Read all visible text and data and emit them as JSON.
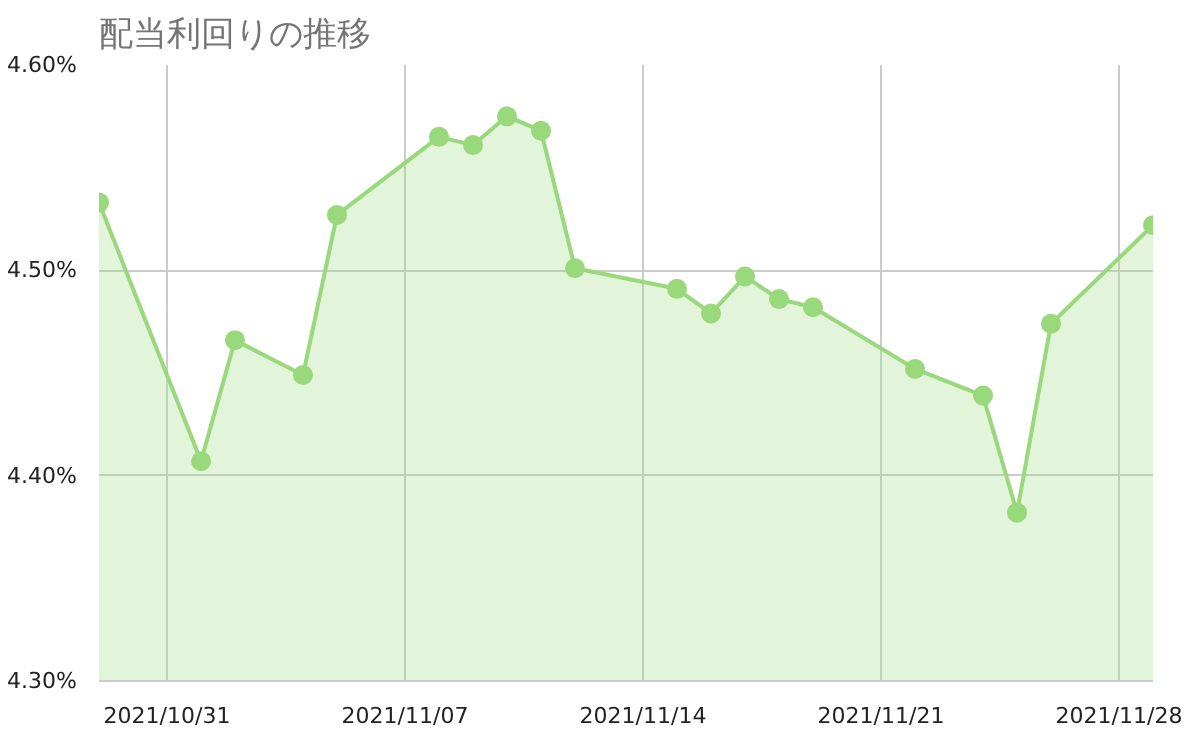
{
  "chart_data": {
    "type": "area",
    "title": "配当利回りの推移",
    "x": [
      "2021-10-29",
      "2021-11-01",
      "2021-11-02",
      "2021-11-04",
      "2021-11-05",
      "2021-11-08",
      "2021-11-09",
      "2021-11-10",
      "2021-11-11",
      "2021-11-12",
      "2021-11-15",
      "2021-11-16",
      "2021-11-17",
      "2021-11-18",
      "2021-11-19",
      "2021-11-22",
      "2021-11-24",
      "2021-11-25",
      "2021-11-26",
      "2021-11-29"
    ],
    "series": [
      {
        "color": "#98d97a",
        "values": [
          4.533,
          4.407,
          4.466,
          4.449,
          4.527,
          4.565,
          4.561,
          4.575,
          4.568,
          4.501,
          4.491,
          4.479,
          4.497,
          4.486,
          4.482,
          4.452,
          4.439,
          4.382,
          4.474,
          4.522
        ]
      }
    ],
    "xlim": [
      "2021-10-29",
      "2021-11-29"
    ],
    "xticks": [
      {
        "value": "2021-10-31",
        "label": "2021/10/31"
      },
      {
        "value": "2021-11-07",
        "label": "2021/11/07"
      },
      {
        "value": "2021-11-14",
        "label": "2021/11/14"
      },
      {
        "value": "2021-11-21",
        "label": "2021/11/21"
      },
      {
        "value": "2021-11-28",
        "label": "2021/11/28"
      }
    ],
    "ylim": [
      4.3,
      4.6
    ],
    "yticks": [
      {
        "value": 4.3,
        "label": "4.30%"
      },
      {
        "value": 4.4,
        "label": "4.40%"
      },
      {
        "value": 4.5,
        "label": "4.50%"
      },
      {
        "value": 4.6,
        "label": "4.60%"
      }
    ],
    "grid": true,
    "marker": "circle",
    "line_style": "solid"
  }
}
